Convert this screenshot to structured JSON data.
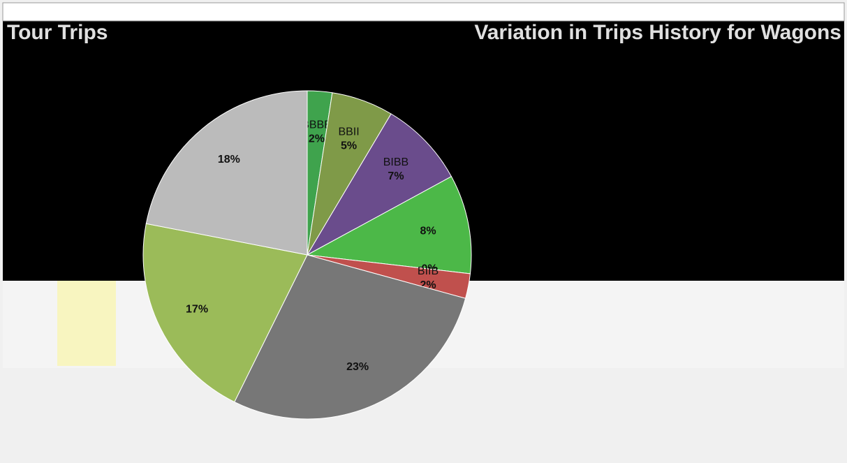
{
  "left_title": "Tour Trips",
  "right_title": "Variation in Trips History for Wagons",
  "chart_data": {
    "type": "pie",
    "categories": [
      "BBBB",
      "BBII",
      "BIBB",
      null,
      null,
      "BIIB",
      null,
      null,
      null
    ],
    "values": [
      2,
      5,
      7,
      8,
      0,
      2,
      23,
      17,
      18
    ],
    "value_labels": [
      "2%",
      "5%",
      "7%",
      "8%",
      "0%",
      "2%",
      "23%",
      "17%",
      "18%"
    ],
    "colors": [
      "#3fa34d",
      "#7f9a48",
      "#6a4c8c",
      "#4cb848",
      "#e0823a",
      "#c0504d",
      "#777777",
      "#9bbb59",
      "#bbbbbb"
    ]
  }
}
